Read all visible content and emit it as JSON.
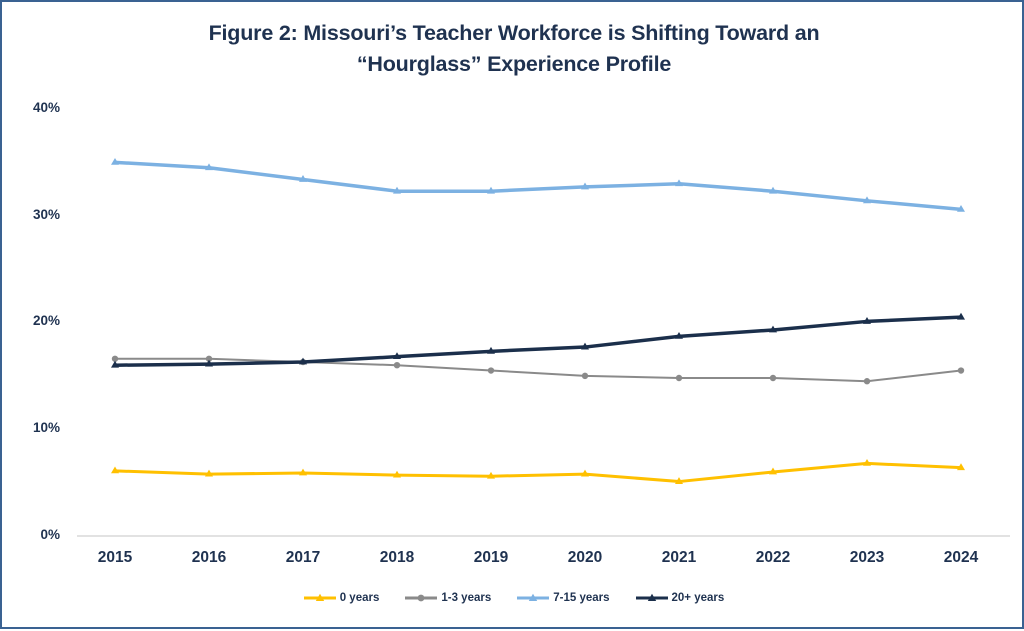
{
  "figure": {
    "border_color": "#3A6292",
    "background": "#FFFFFF"
  },
  "chart_data": {
    "type": "line",
    "title": "Figure 2: Missouri’s Teacher Workforce is Shifting Toward an “Hourglass” Experience Profile",
    "title_color": "#1F3250",
    "categories": [
      "2015",
      "2016",
      "2017",
      "2018",
      "2019",
      "2020",
      "2021",
      "2022",
      "2023",
      "2024"
    ],
    "series": [
      {
        "name": "0 years",
        "color": "#FFC000",
        "marker": "triangle",
        "line_width": 3,
        "values": [
          6.1,
          5.8,
          5.9,
          5.7,
          5.6,
          5.8,
          5.1,
          6.0,
          6.8,
          6.4
        ]
      },
      {
        "name": "1-3 years",
        "color": "#8A8A8A",
        "marker": "circle",
        "line_width": 2,
        "values": [
          16.6,
          16.6,
          16.3,
          16.0,
          15.5,
          15.0,
          14.8,
          14.8,
          14.5,
          15.5
        ]
      },
      {
        "name": "7-15 years",
        "color": "#7CB1E2",
        "marker": "triangle",
        "line_width": 3.5,
        "values": [
          35.0,
          34.5,
          33.4,
          32.3,
          32.3,
          32.7,
          33.0,
          32.3,
          31.4,
          30.6
        ]
      },
      {
        "name": "20+ years",
        "color": "#1B2F4B",
        "marker": "triangle",
        "line_width": 3.5,
        "values": [
          16.0,
          16.1,
          16.3,
          16.8,
          17.3,
          17.7,
          18.7,
          19.3,
          20.1,
          20.5
        ]
      }
    ],
    "xlabel": "",
    "ylabel": "",
    "ylim": [
      0,
      40
    ],
    "yticks": [
      "40%",
      "30%",
      "20%",
      "10%",
      "0%"
    ],
    "grid": false,
    "legend_position": "bottom",
    "axis_line_color": "#D9D9D9",
    "tick_label_color": "#1F3250"
  }
}
